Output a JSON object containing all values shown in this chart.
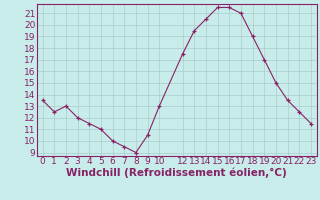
{
  "x": [
    0,
    1,
    2,
    3,
    4,
    5,
    6,
    7,
    8,
    9,
    10,
    12,
    13,
    14,
    15,
    16,
    17,
    18,
    19,
    20,
    21,
    22,
    23
  ],
  "y": [
    13.5,
    12.5,
    13.0,
    12.0,
    11.5,
    11.0,
    10.0,
    9.5,
    9.0,
    10.5,
    13.0,
    17.5,
    19.5,
    20.5,
    21.5,
    21.5,
    21.0,
    19.0,
    17.0,
    15.0,
    13.5,
    12.5,
    11.5
  ],
  "xlim": [
    -0.5,
    23.5
  ],
  "ylim": [
    9,
    22
  ],
  "yticks": [
    9,
    10,
    11,
    12,
    13,
    14,
    15,
    16,
    17,
    18,
    19,
    20,
    21
  ],
  "xticks": [
    0,
    1,
    2,
    3,
    4,
    5,
    6,
    7,
    8,
    9,
    10,
    12,
    13,
    14,
    15,
    16,
    17,
    18,
    19,
    20,
    21,
    22,
    23
  ],
  "xlabel": "Windchill (Refroidissement éolien,°C)",
  "line_color": "#882266",
  "marker": "+",
  "bg_color": "#c8ecea",
  "grid_color": "#aacccc",
  "axis_color": "#882266",
  "tick_color": "#882266",
  "label_color": "#882266",
  "font_size": 6.5,
  "xlabel_fontsize": 7.5
}
